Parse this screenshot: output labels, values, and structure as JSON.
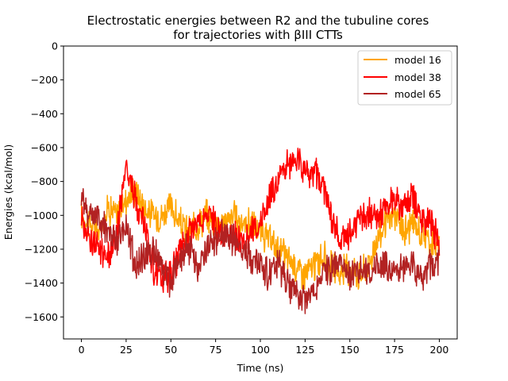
{
  "chart_data": {
    "type": "line",
    "title_line1": "Electrostatic energies between R2 and the tubuline cores",
    "title_line2": "for trajectories with βIII CTTs",
    "xlabel": "Time (ns)",
    "ylabel": "Energies (kcal/mol)",
    "xlim": [
      -10,
      210
    ],
    "ylim": [
      -1730,
      0
    ],
    "xticks": [
      0,
      25,
      50,
      75,
      100,
      125,
      150,
      175,
      200
    ],
    "yticks": [
      0,
      -200,
      -400,
      -600,
      -800,
      -1000,
      -1200,
      -1400,
      -1600
    ],
    "xtick_labels": [
      "0",
      "25",
      "50",
      "75",
      "100",
      "125",
      "150",
      "175",
      "200"
    ],
    "ytick_labels": [
      "0",
      "−200",
      "−400",
      "−600",
      "−800",
      "−1000",
      "−1200",
      "−1400",
      "−1600"
    ],
    "legend_position": "top-right",
    "grid": false,
    "x": [
      0,
      5,
      10,
      15,
      20,
      25,
      30,
      35,
      40,
      45,
      50,
      55,
      60,
      65,
      70,
      75,
      80,
      85,
      90,
      95,
      100,
      105,
      110,
      115,
      120,
      125,
      130,
      135,
      140,
      145,
      150,
      155,
      160,
      165,
      170,
      175,
      180,
      185,
      190,
      195,
      200
    ],
    "series": [
      {
        "name": "model 16",
        "color": "#FFA500",
        "values": [
          -1000,
          -1050,
          -1100,
          -950,
          -1000,
          -900,
          -850,
          -950,
          -1000,
          -1000,
          -950,
          -1050,
          -1100,
          -1050,
          -1000,
          -1050,
          -1050,
          -1000,
          -1050,
          -1050,
          -1100,
          -1150,
          -1200,
          -1250,
          -1300,
          -1350,
          -1300,
          -1250,
          -1300,
          -1350,
          -1300,
          -1350,
          -1300,
          -1150,
          -1050,
          -1000,
          -1100,
          -1050,
          -1100,
          -1150,
          -1200
        ]
      },
      {
        "name": "model 38",
        "color": "#FF0000",
        "values": [
          -1000,
          -1150,
          -1200,
          -1250,
          -1100,
          -700,
          -900,
          -1050,
          -1300,
          -1400,
          -1350,
          -1200,
          -1100,
          -1050,
          -1000,
          -1050,
          -1150,
          -1100,
          -1150,
          -1100,
          -1050,
          -900,
          -800,
          -700,
          -680,
          -720,
          -750,
          -800,
          -1050,
          -1150,
          -1100,
          -1050,
          -1000,
          -1000,
          -950,
          -900,
          -950,
          -900,
          -1000,
          -1050,
          -1150
        ]
      },
      {
        "name": "model 65",
        "color": "#B22222",
        "values": [
          -900,
          -1000,
          -1000,
          -1100,
          -1150,
          -1050,
          -1300,
          -1250,
          -1200,
          -1300,
          -1400,
          -1250,
          -1200,
          -1300,
          -1200,
          -1150,
          -1100,
          -1150,
          -1200,
          -1250,
          -1300,
          -1350,
          -1300,
          -1400,
          -1450,
          -1500,
          -1450,
          -1350,
          -1300,
          -1300,
          -1350,
          -1300,
          -1350,
          -1300,
          -1300,
          -1350,
          -1300,
          -1300,
          -1350,
          -1300,
          -1250
        ]
      }
    ]
  }
}
